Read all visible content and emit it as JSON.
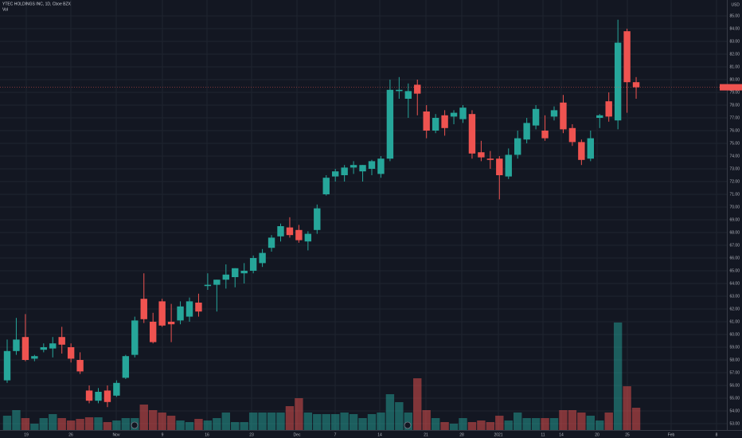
{
  "chart_data": {
    "type": "candlestick",
    "title": "YTEC HOLDINGS INC, 1D, Cboe BZX",
    "volume_label": "Vol",
    "currency": "USD",
    "up_color": "#26a69a",
    "down_color": "#ef5350",
    "grid": true,
    "ylim": [
      52.5,
      86.25
    ],
    "yticks": [
      {
        "value": 53,
        "label": "53.00"
      },
      {
        "value": 54,
        "label": "54.00"
      },
      {
        "value": 55,
        "label": "55.00"
      },
      {
        "value": 56,
        "label": "56.00"
      },
      {
        "value": 57,
        "label": "57.00"
      },
      {
        "value": 58,
        "label": "58.00"
      },
      {
        "value": 59,
        "label": "59.00"
      },
      {
        "value": 60,
        "label": "60.00"
      },
      {
        "value": 61,
        "label": "61.00"
      },
      {
        "value": 62,
        "label": "62.00"
      },
      {
        "value": 63,
        "label": "63.00"
      },
      {
        "value": 64,
        "label": "64.00"
      },
      {
        "value": 65,
        "label": "65.00"
      },
      {
        "value": 66,
        "label": "66.00"
      },
      {
        "value": 67,
        "label": "67.00"
      },
      {
        "value": 68,
        "label": "68.00"
      },
      {
        "value": 69,
        "label": "69.00"
      },
      {
        "value": 70,
        "label": "70.00"
      },
      {
        "value": 71,
        "label": "71.00"
      },
      {
        "value": 72,
        "label": "72.00"
      },
      {
        "value": 73,
        "label": "73.00"
      },
      {
        "value": 74,
        "label": "74.00"
      },
      {
        "value": 75,
        "label": "75.00"
      },
      {
        "value": 76,
        "label": "76.00"
      },
      {
        "value": 77,
        "label": "77.00"
      },
      {
        "value": 78,
        "label": "78.00"
      },
      {
        "value": 79,
        "label": "79.00"
      },
      {
        "value": 80,
        "label": "80.00"
      },
      {
        "value": 81,
        "label": "81.00"
      },
      {
        "value": 82,
        "label": "82.00"
      },
      {
        "value": 83,
        "label": "83.00"
      },
      {
        "value": 84,
        "label": "84.00"
      },
      {
        "value": 85,
        "label": "85.00"
      }
    ],
    "xtick_labels": [
      "19",
      "26",
      "Nov",
      "9",
      "16",
      "23",
      "Dec",
      "7",
      "14",
      "21",
      "28",
      "2021",
      "11",
      "14",
      "20",
      "25",
      "Feb",
      "8"
    ],
    "open": [
      56.4,
      58.7,
      59.8,
      58.1,
      58.8,
      58.9,
      59.8,
      59.0,
      58.0,
      55.6,
      54.8,
      55.6,
      55.2,
      56.6,
      58.4,
      62.8,
      61.0,
      62.6,
      61.0,
      61.1,
      61.4,
      62.5,
      63.8,
      63.9,
      64.3,
      64.5,
      64.8,
      65.0,
      65.6,
      66.8,
      67.7,
      68.4,
      68.2,
      67.3,
      68.2,
      71.0,
      72.4,
      72.5,
      73.1,
      72.8,
      73.0,
      72.6,
      73.8,
      79.1,
      78.5,
      79.6,
      77.5,
      76.0,
      77.2,
      77.1,
      76.9,
      77.3,
      74.3,
      73.8,
      73.8,
      72.4,
      74.1,
      75.3,
      76.4,
      76.0,
      77.1,
      78.2,
      76.2,
      75.1,
      73.8,
      77.0,
      78.3,
      76.8,
      83.8,
      79.8
    ],
    "high": [
      59.6,
      61.3,
      61.6,
      58.4,
      59.3,
      59.8,
      60.6,
      59.3,
      58.6,
      56.0,
      55.8,
      56.0,
      56.4,
      58.4,
      61.4,
      64.8,
      61.7,
      62.8,
      62.4,
      62.6,
      62.9,
      63.2,
      64.8,
      64.3,
      65.5,
      65.2,
      65.6,
      66.2,
      66.7,
      67.8,
      68.7,
      69.2,
      68.6,
      68.1,
      70.2,
      72.5,
      73.0,
      73.3,
      73.6,
      73.3,
      73.7,
      74.0,
      80.0,
      80.2,
      79.7,
      80.0,
      78.0,
      77.3,
      77.6,
      77.6,
      78.0,
      77.6,
      75.2,
      74.4,
      74.0,
      74.6,
      76.0,
      77.0,
      78.0,
      77.2,
      77.9,
      78.8,
      76.5,
      75.3,
      76.0,
      77.3,
      79.0,
      84.7,
      84.0,
      80.2
    ],
    "low": [
      56.2,
      58.4,
      57.9,
      57.9,
      58.6,
      58.2,
      58.5,
      57.8,
      56.9,
      54.6,
      54.6,
      54.3,
      55.1,
      56.5,
      58.2,
      60.9,
      59.3,
      60.6,
      59.4,
      60.8,
      61.0,
      61.4,
      63.5,
      61.8,
      63.6,
      63.7,
      64.0,
      64.8,
      65.3,
      66.5,
      67.3,
      67.6,
      67.2,
      66.6,
      67.9,
      70.9,
      72.0,
      72.0,
      72.6,
      72.0,
      72.5,
      72.3,
      73.6,
      78.5,
      77.0,
      77.2,
      75.4,
      75.8,
      75.6,
      76.5,
      76.6,
      73.8,
      73.6,
      73.0,
      70.6,
      72.2,
      73.8,
      75.0,
      76.1,
      75.2,
      76.8,
      75.8,
      74.8,
      73.3,
      73.6,
      76.2,
      76.7,
      76.1,
      77.4,
      78.5
    ],
    "close": [
      58.7,
      59.6,
      58.0,
      58.3,
      59.0,
      59.3,
      59.2,
      58.1,
      57.1,
      54.8,
      55.5,
      54.7,
      56.2,
      58.3,
      61.1,
      61.2,
      59.4,
      60.7,
      60.8,
      62.2,
      62.6,
      61.8,
      63.9,
      64.3,
      64.7,
      65.2,
      65.0,
      66.0,
      66.4,
      67.6,
      68.5,
      67.8,
      67.4,
      67.9,
      69.9,
      72.3,
      72.8,
      73.1,
      73.3,
      73.3,
      73.6,
      73.8,
      79.2,
      79.2,
      79.1,
      78.9,
      76.0,
      77.0,
      76.2,
      77.4,
      77.8,
      74.2,
      73.9,
      73.7,
      72.5,
      74.1,
      75.4,
      76.6,
      77.7,
      75.4,
      77.6,
      76.1,
      75.1,
      73.7,
      75.4,
      77.2,
      77.1,
      82.9,
      79.8,
      79.4
    ],
    "volume": [
      18,
      25,
      15,
      8,
      15,
      20,
      15,
      12,
      14,
      16,
      16,
      10,
      12,
      15,
      15,
      32,
      25,
      22,
      18,
      12,
      10,
      14,
      12,
      15,
      22,
      10,
      10,
      22,
      22,
      22,
      22,
      30,
      40,
      22,
      20,
      20,
      20,
      22,
      20,
      15,
      20,
      22,
      45,
      35,
      22,
      65,
      25,
      15,
      10,
      8,
      15,
      10,
      12,
      10,
      18,
      12,
      22,
      15,
      15,
      15,
      15,
      25,
      25,
      22,
      18,
      12,
      22,
      135,
      55,
      28
    ]
  }
}
